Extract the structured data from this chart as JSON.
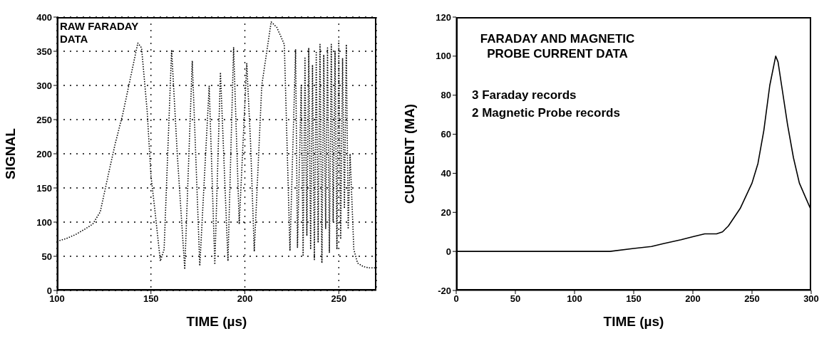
{
  "chart_data": [
    {
      "type": "line",
      "title": "RAW FARADAY DATA",
      "xlabel": "TIME (µs)",
      "ylabel": "SIGNAL",
      "x": [
        100,
        105,
        110,
        115,
        119,
        123,
        128,
        131,
        135,
        139,
        143,
        145,
        148,
        150,
        152,
        155,
        157,
        161,
        164,
        168,
        172,
        176,
        181,
        184,
        187,
        191,
        194,
        197,
        201,
        203,
        205,
        209,
        214,
        217,
        221,
        224,
        227,
        228,
        230,
        231,
        232,
        233,
        234,
        235,
        236,
        237,
        238,
        239,
        240,
        241,
        242,
        243,
        244,
        245,
        246,
        247,
        248,
        249,
        250,
        251,
        252,
        253,
        254,
        255,
        256,
        258,
        260,
        263,
        266,
        270
      ],
      "series": [
        {
          "color": "#000000",
          "values": [
            72,
            76,
            82,
            90,
            97,
            115,
            178,
            215,
            258,
            310,
            362,
            355,
            262,
            168,
            120,
            43,
            60,
            352,
            200,
            31,
            336,
            36,
            299,
            38,
            319,
            43,
            356,
            97,
            332,
            218,
            57,
            300,
            393,
            385,
            360,
            58,
            353,
            63,
            300,
            50,
            340,
            80,
            355,
            60,
            330,
            45,
            350,
            70,
            360,
            40,
            345,
            90,
            355,
            55,
            360,
            100,
            350,
            60,
            365,
            75,
            340,
            120,
            360,
            90,
            200,
            60,
            40,
            35,
            33,
            33
          ]
        }
      ],
      "xlim": [
        100,
        270
      ],
      "xticks": [
        100,
        150,
        200,
        250
      ],
      "ylim": [
        0,
        400
      ],
      "yticks": [
        0,
        50,
        100,
        150,
        200,
        250,
        300,
        350,
        400
      ],
      "grid": true,
      "line_style": "dotted",
      "marker": "none",
      "legend": false
    },
    {
      "type": "line",
      "title": "FARADAY AND MAGNETIC PROBE CURRENT DATA",
      "xlabel": "TIME (µs)",
      "ylabel": "CURRENT (MA)",
      "annotations": [
        "3 Faraday records",
        "2 Magnetic Probe records"
      ],
      "x": [
        0,
        50,
        100,
        130,
        150,
        165,
        175,
        190,
        200,
        210,
        220,
        225,
        230,
        240,
        250,
        255,
        260,
        265,
        270,
        272,
        275,
        280,
        285,
        290,
        295,
        300
      ],
      "series": [
        {
          "color": "#000000",
          "values": [
            0,
            0,
            0,
            0,
            1.5,
            2.5,
            4,
            6,
            7.5,
            9,
            9,
            10,
            13,
            22,
            35,
            45,
            62,
            85,
            100,
            97,
            85,
            65,
            48,
            35,
            28,
            21
          ]
        }
      ],
      "xlim": [
        0,
        300
      ],
      "xticks": [
        0,
        50,
        100,
        150,
        200,
        250,
        300
      ],
      "ylim": [
        -20,
        120
      ],
      "yticks": [
        -20,
        0,
        20,
        40,
        60,
        80,
        100,
        120
      ],
      "grid": false,
      "line_style": "solid",
      "marker": "none",
      "legend": false
    }
  ]
}
